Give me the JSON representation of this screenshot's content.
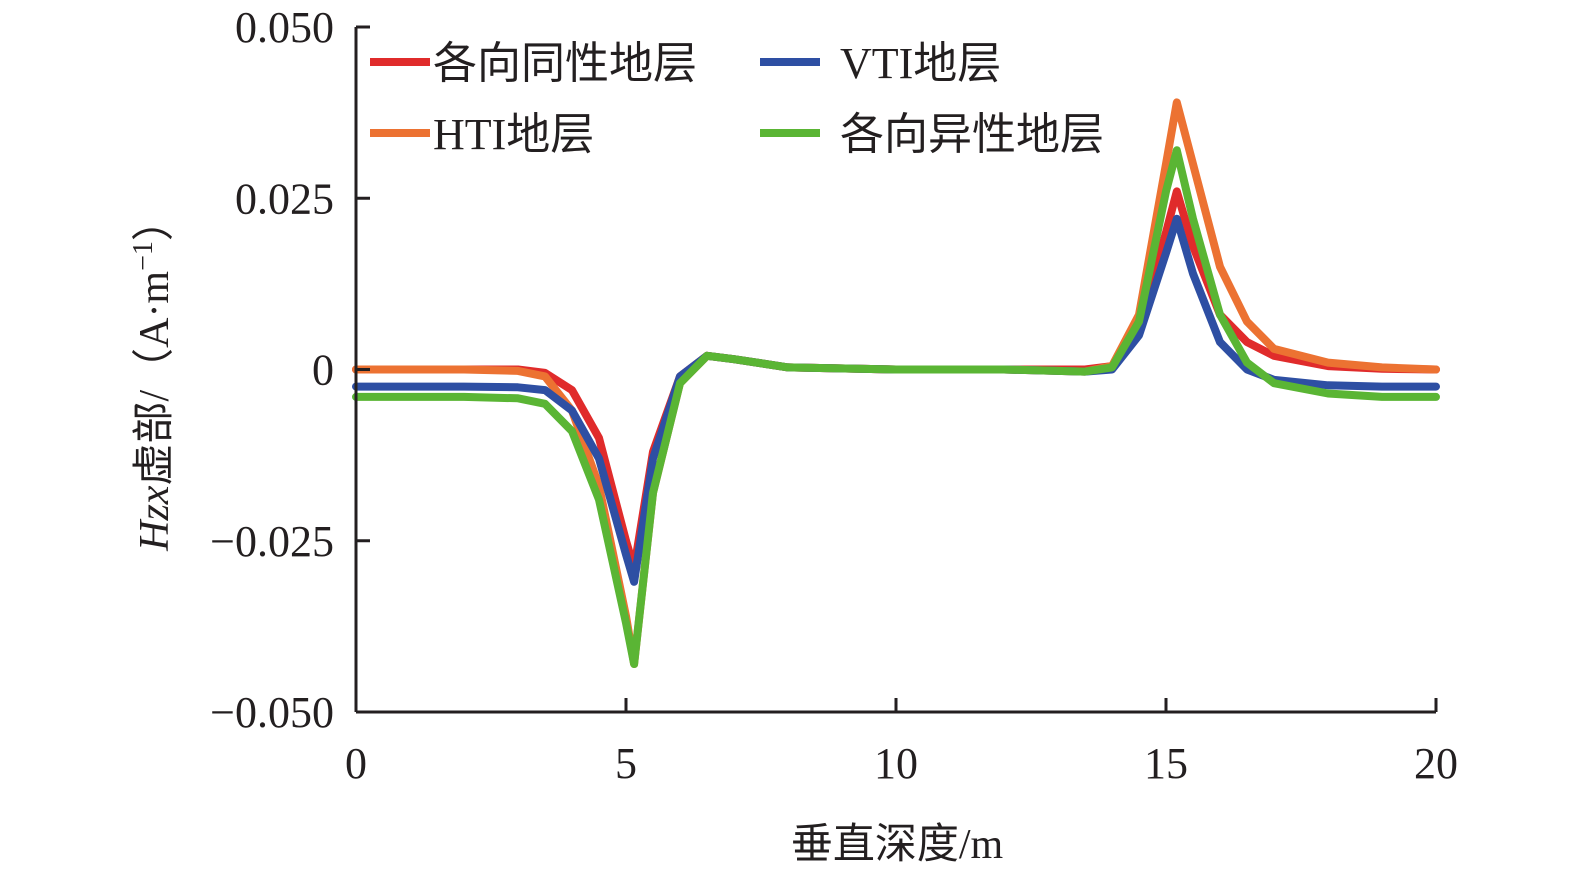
{
  "chart_data": {
    "type": "line",
    "title": "",
    "xlabel": "垂直深度/m",
    "ylabel": {
      "var": "Hzx",
      "rest": "虚部/（A·m",
      "sup": "−1",
      "close": "）"
    },
    "xlim": [
      0,
      20
    ],
    "ylim": [
      -0.05,
      0.05
    ],
    "xticks": [
      0,
      5,
      10,
      15,
      20
    ],
    "xtick_labels": [
      "0",
      "5",
      "10",
      "15",
      "20"
    ],
    "yticks": [
      -0.05,
      -0.025,
      0,
      0.025,
      0.05
    ],
    "ytick_labels": [
      "−0.050",
      "−0.025",
      "0",
      "0.025",
      "0.050"
    ],
    "grid": false,
    "legend_position": "top-left",
    "x": [
      0,
      1,
      2,
      3,
      3.5,
      4,
      4.5,
      5,
      5.15,
      5.5,
      6,
      6.5,
      7,
      8,
      10,
      12,
      13.5,
      14,
      14.5,
      15,
      15.2,
      15.5,
      16,
      16.5,
      17,
      18,
      19,
      20
    ],
    "series": [
      {
        "name": "各向同性地层",
        "color": "#e02b2b",
        "values": [
          0,
          0,
          0,
          0,
          -0.0005,
          -0.003,
          -0.01,
          -0.025,
          -0.029,
          -0.012,
          -0.001,
          0.002,
          0.0015,
          0.0003,
          0,
          0,
          0,
          0.0005,
          0.006,
          0.02,
          0.026,
          0.018,
          0.008,
          0.004,
          0.002,
          0.0005,
          0.0001,
          0
        ]
      },
      {
        "name": "VTI地层",
        "color": "#2e4fa3",
        "values": [
          -0.0025,
          -0.0025,
          -0.0025,
          -0.0026,
          -0.003,
          -0.006,
          -0.013,
          -0.027,
          -0.031,
          -0.013,
          -0.001,
          0.002,
          0.0015,
          0.0003,
          0,
          0,
          -0.0003,
          0,
          0.005,
          0.017,
          0.022,
          0.014,
          0.004,
          0,
          -0.0015,
          -0.0023,
          -0.0025,
          -0.0025
        ]
      },
      {
        "name": "HTI地层",
        "color": "#ec7232",
        "values": [
          0,
          0,
          0,
          -0.0002,
          -0.001,
          -0.006,
          -0.017,
          -0.036,
          -0.043,
          -0.018,
          -0.002,
          0.002,
          0.0015,
          0.0003,
          0,
          0,
          -0.0003,
          0.0005,
          0.008,
          0.03,
          0.039,
          0.03,
          0.015,
          0.007,
          0.003,
          0.001,
          0.0003,
          0
        ]
      },
      {
        "name": "各向异性地层",
        "color": "#5ab534",
        "values": [
          -0.004,
          -0.004,
          -0.004,
          -0.0042,
          -0.005,
          -0.009,
          -0.019,
          -0.037,
          -0.043,
          -0.018,
          -0.002,
          0.002,
          0.0015,
          0.0003,
          0,
          0,
          -0.0003,
          0.0003,
          0.007,
          0.026,
          0.032,
          0.022,
          0.008,
          0.001,
          -0.002,
          -0.0035,
          -0.004,
          -0.004
        ]
      }
    ]
  }
}
